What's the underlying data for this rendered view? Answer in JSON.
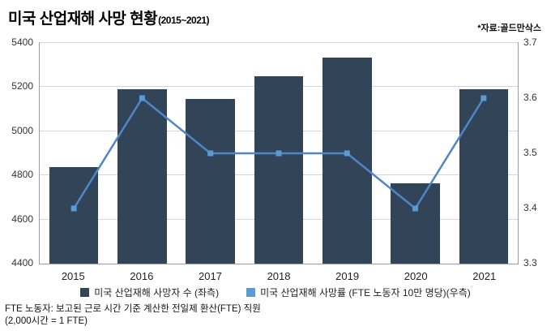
{
  "header": {
    "title": "미국 산업재해 사망 현황",
    "title_range": "(2015~2021)",
    "source": "*자료:골드만삭스"
  },
  "footnote": {
    "line1": "FTE 노동자: 보고된 근로 시간 기준 계산한 전일제 환산(FTE) 직원",
    "line2": "(2,000시간 = 1 FTE)"
  },
  "chart_data": {
    "type": "combo-bar-line",
    "categories": [
      "2015",
      "2016",
      "2017",
      "2018",
      "2019",
      "2020",
      "2021"
    ],
    "series": [
      {
        "name": "미국 산업재해 사망자 수 (좌측)",
        "type": "bar",
        "axis": "left",
        "color": "#324458",
        "values": [
          4836,
          5190,
          5147,
          5250,
          5333,
          4764,
          5190
        ]
      },
      {
        "name": "미국 산업재해 사망률 (FTE 노동자 10만 명당)(우측)",
        "type": "line",
        "axis": "right",
        "color": "#5b9bd5",
        "line_color": "#4f86c6",
        "values": [
          3.4,
          3.6,
          3.5,
          3.5,
          3.5,
          3.4,
          3.6
        ]
      }
    ],
    "left_axis": {
      "min": 4400,
      "max": 5400,
      "ticks": [
        4400,
        4600,
        4800,
        5000,
        5200,
        5400
      ]
    },
    "right_axis": {
      "min": 3.3,
      "max": 3.7,
      "ticks": [
        3.3,
        3.4,
        3.5,
        3.6,
        3.7
      ]
    },
    "grid": true,
    "legend_position": "bottom"
  }
}
